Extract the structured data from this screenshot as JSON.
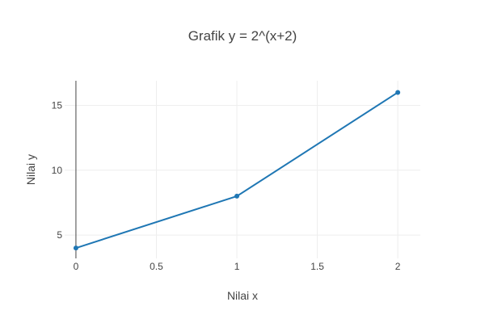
{
  "chart_data": {
    "type": "line",
    "title": "Grafik y = 2^(x+2)",
    "xlabel": "Nilai x",
    "ylabel": "Nilai y",
    "x": [
      0,
      1,
      2
    ],
    "series": [
      {
        "values": [
          4,
          8,
          16
        ]
      }
    ],
    "xlim": [
      -0.07,
      2.14
    ],
    "ylim": [
      3.2,
      16.9
    ],
    "x_ticks": [
      0,
      0.5,
      1,
      1.5,
      2
    ],
    "x_tick_labels": [
      "0",
      "0.5",
      "1",
      "1.5",
      "2"
    ],
    "y_ticks": [
      5,
      10,
      15
    ],
    "y_tick_labels": [
      "5",
      "10",
      "15"
    ],
    "grid": true,
    "line_color": "#1f77b4",
    "grid_color": "#eeeeee",
    "zero_line_color": "#444444"
  }
}
